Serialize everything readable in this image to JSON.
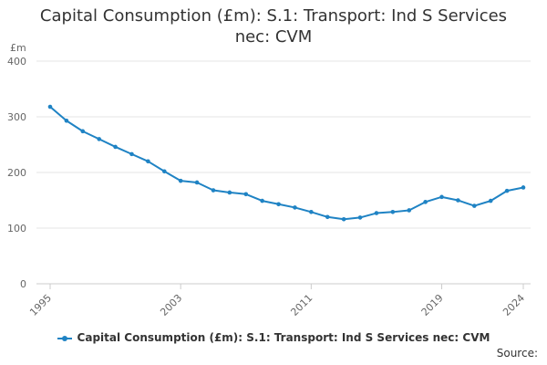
{
  "chart_data": {
    "type": "line",
    "title": "Capital Consumption (£m): S.1: Transport: Ind S Services\nnec: CVM",
    "ylabel": "£m",
    "xlabel": "",
    "ylim": [
      0,
      400
    ],
    "y_ticks": [
      "0",
      "100",
      "200",
      "300",
      "400"
    ],
    "x_ticks": [
      "1995",
      "2003",
      "2011",
      "2019",
      "2024"
    ],
    "grid": true,
    "legend_position": "bottom",
    "x": [
      1995,
      1996,
      1997,
      1998,
      1999,
      2000,
      2001,
      2002,
      2003,
      2004,
      2005,
      2006,
      2007,
      2008,
      2009,
      2010,
      2011,
      2012,
      2013,
      2014,
      2015,
      2016,
      2017,
      2018,
      2019,
      2020,
      2021,
      2022,
      2023,
      2024
    ],
    "series": [
      {
        "name": "Capital Consumption (£m): S.1: Transport: Ind S Services nec: CVM",
        "color": "#1f83c4",
        "values": [
          318,
          293,
          274,
          260,
          246,
          233,
          220,
          202,
          185,
          182,
          168,
          164,
          161,
          149,
          143,
          137,
          129,
          120,
          116,
          119,
          127,
          129,
          132,
          147,
          156,
          150,
          140,
          149,
          167,
          173
        ]
      }
    ]
  },
  "source_label": "Source:"
}
